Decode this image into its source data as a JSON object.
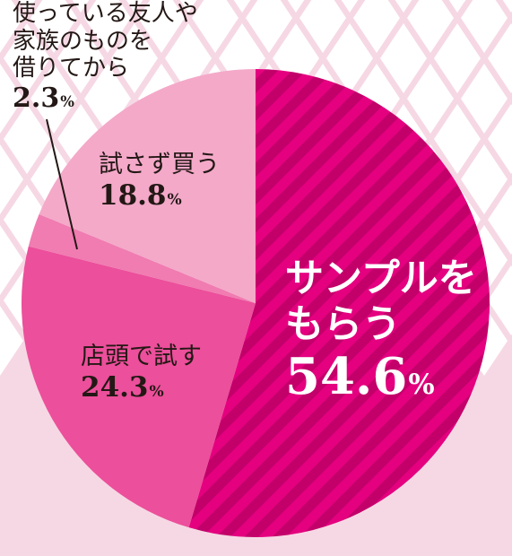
{
  "chart_data": {
    "type": "pie",
    "title": "",
    "slices": [
      {
        "label": "サンプルをもらう",
        "label_lines": [
          "サンプルを",
          "もらう"
        ],
        "value": 54.6,
        "value_text": "54.6",
        "color": "#e4007f",
        "stripe_color": "#c3006a",
        "text_color": "#ffffff",
        "pattern": "diagonal-stripes"
      },
      {
        "label": "店頭で試す",
        "label_lines": [
          "店頭で試す"
        ],
        "value": 24.3,
        "value_text": "24.3",
        "color": "#ec4f9b",
        "text_color": "#231815"
      },
      {
        "label": "使っている友人や家族のものを借りてから",
        "label_lines": [
          "使っている友人や",
          "家族のものを",
          "借りてから"
        ],
        "value": 2.3,
        "value_text": "2.3",
        "color": "#f07cb1",
        "text_color": "#231815"
      },
      {
        "label": "試さず買う",
        "label_lines": [
          "試さず買う"
        ],
        "value": 18.8,
        "value_text": "18.8",
        "color": "#f4a9c9",
        "text_color": "#231815"
      }
    ],
    "unit": "%",
    "start_angle": "12 o'clock",
    "direction": "clockwise",
    "background": "pink diamond pattern",
    "background_colors": [
      "#f6d8e4",
      "#ffffff"
    ]
  }
}
